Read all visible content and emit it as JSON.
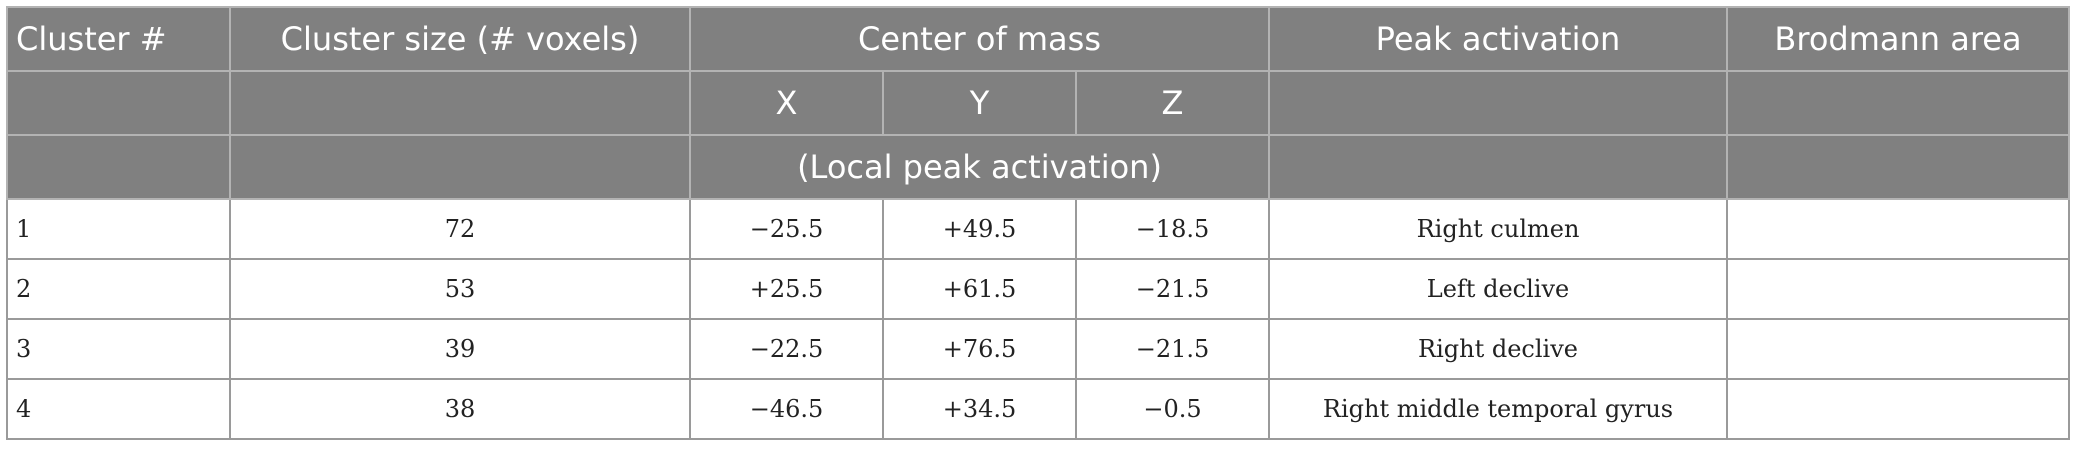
{
  "table": {
    "headers": {
      "cluster_num": "Cluster #",
      "cluster_size": "Cluster size (# voxels)",
      "center_of_mass": "Center of mass",
      "peak_activation": "Peak activation",
      "brodmann_area": "Brodmann area",
      "x": "X",
      "y": "Y",
      "z": "Z",
      "local_peak": "(Local peak activation)"
    },
    "rows": [
      {
        "cluster": "1",
        "size": "72",
        "x": "−25.5",
        "y": "+49.5",
        "z": "−18.5",
        "peak": "Right culmen",
        "brodmann": ""
      },
      {
        "cluster": "2",
        "size": "53",
        "x": "+25.5",
        "y": "+61.5",
        "z": "−21.5",
        "peak": "Left declive",
        "brodmann": ""
      },
      {
        "cluster": "3",
        "size": "39",
        "x": "−22.5",
        "y": "+76.5",
        "z": "−21.5",
        "peak": "Right declive",
        "brodmann": ""
      },
      {
        "cluster": "4",
        "size": "38",
        "x": "−46.5",
        "y": "+34.5",
        "z": "−0.5",
        "peak": "Right middle temporal gyrus",
        "brodmann": ""
      }
    ]
  }
}
